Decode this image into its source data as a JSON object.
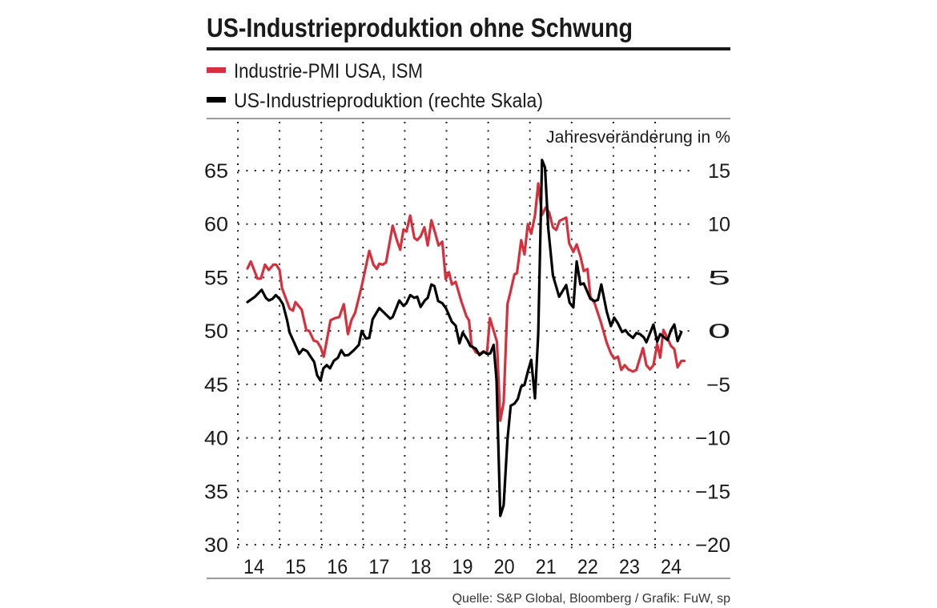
{
  "header": {
    "title": "US-Industrieproduktion ohne Schwung"
  },
  "legend": [
    {
      "label": "Industrie-PMI USA, ISM",
      "color": "#d7303d"
    },
    {
      "label": "US-Industrieproduktion (rechte Skala)",
      "color": "#000000"
    }
  ],
  "source": "Quelle: S&P Global, Bloomberg / Grafik: FuW, sp",
  "chart_data": {
    "type": "line",
    "title": "US-Industrieproduktion ohne Schwung",
    "right_axis_label": "Jahresveränderung in %",
    "x_ticks": [
      "14",
      "15",
      "16",
      "17",
      "18",
      "19",
      "20",
      "21",
      "22",
      "23",
      "24"
    ],
    "xlim": [
      2014,
      2024.85
    ],
    "left_axis": {
      "ylim": [
        30,
        65
      ],
      "ticks": [
        "65",
        "60",
        "55",
        "50",
        "45",
        "40",
        "35",
        "30"
      ]
    },
    "right_axis": {
      "ylim": [
        -20,
        15
      ],
      "ticks": [
        "15",
        "10",
        "5",
        "0",
        "−5",
        "−10",
        "−15",
        "−20"
      ]
    },
    "grid": "dotted",
    "legend_position": "top",
    "series": [
      {
        "name": "Industrie-PMI USA, ISM",
        "axis": "left",
        "color": "#d7303d",
        "points": [
          [
            2014.23,
            55.85
          ],
          [
            2014.31,
            56.5
          ],
          [
            2014.47,
            54.9
          ],
          [
            2014.55,
            54.9
          ],
          [
            2014.65,
            56.2
          ],
          [
            2014.74,
            55.7
          ],
          [
            2014.85,
            56.2
          ],
          [
            2014.92,
            56.2
          ],
          [
            2015.0,
            55.7
          ],
          [
            2015.06,
            54.0
          ],
          [
            2015.24,
            52.1
          ],
          [
            2015.32,
            51.9
          ],
          [
            2015.38,
            52.7
          ],
          [
            2015.53,
            52.0
          ],
          [
            2015.64,
            50.1
          ],
          [
            2015.71,
            50.0
          ],
          [
            2015.82,
            49.1
          ],
          [
            2015.9,
            49.0
          ],
          [
            2015.98,
            48.5
          ],
          [
            2016.06,
            47.6
          ],
          [
            2016.22,
            51.0
          ],
          [
            2016.33,
            51.2
          ],
          [
            2016.43,
            51.3
          ],
          [
            2016.54,
            52.5
          ],
          [
            2016.64,
            49.7
          ],
          [
            2016.72,
            51.0
          ],
          [
            2016.81,
            51.7
          ],
          [
            2016.97,
            54.2
          ],
          [
            2017.15,
            57.5
          ],
          [
            2017.25,
            56.2
          ],
          [
            2017.33,
            55.8
          ],
          [
            2017.39,
            56.3
          ],
          [
            2017.47,
            56.2
          ],
          [
            2017.55,
            56.4
          ],
          [
            2017.71,
            59.85
          ],
          [
            2017.81,
            58.5
          ],
          [
            2017.89,
            57.6
          ],
          [
            2017.97,
            59.5
          ],
          [
            2018.04,
            59.3
          ],
          [
            2018.13,
            60.8
          ],
          [
            2018.23,
            58.7
          ],
          [
            2018.3,
            58.5
          ],
          [
            2018.38,
            58.85
          ],
          [
            2018.47,
            59.7
          ],
          [
            2018.55,
            58.0
          ],
          [
            2018.64,
            60.35
          ],
          [
            2018.74,
            59.0
          ],
          [
            2018.81,
            58.0
          ],
          [
            2018.9,
            58.35
          ],
          [
            2018.98,
            54.85
          ],
          [
            2019.06,
            55.5
          ],
          [
            2019.13,
            54.35
          ],
          [
            2019.22,
            54.6
          ],
          [
            2019.35,
            52.85
          ],
          [
            2019.48,
            51.35
          ],
          [
            2019.54,
            51.0
          ],
          [
            2019.6,
            48.7
          ],
          [
            2019.7,
            48.0
          ],
          [
            2019.79,
            47.85
          ],
          [
            2019.89,
            48.1
          ],
          [
            2019.97,
            47.85
          ],
          [
            2020.04,
            51.2
          ],
          [
            2020.21,
            49.0
          ],
          [
            2020.29,
            41.6
          ],
          [
            2020.37,
            43.3
          ],
          [
            2020.46,
            52.5
          ],
          [
            2020.53,
            53.6
          ],
          [
            2020.63,
            55.3
          ],
          [
            2020.69,
            55.4
          ],
          [
            2020.79,
            58.5
          ],
          [
            2020.87,
            57.15
          ],
          [
            2020.95,
            60.0
          ],
          [
            2021.03,
            59.1
          ],
          [
            2021.12,
            60.8
          ],
          [
            2021.2,
            63.8
          ],
          [
            2021.29,
            60.85
          ],
          [
            2021.38,
            61.55
          ],
          [
            2021.46,
            61.1
          ],
          [
            2021.55,
            59.7
          ],
          [
            2021.63,
            59.45
          ],
          [
            2021.71,
            60.3
          ],
          [
            2021.87,
            60.6
          ],
          [
            2021.94,
            58.2
          ],
          [
            2022.04,
            57.4
          ],
          [
            2022.12,
            58.1
          ],
          [
            2022.21,
            57.0
          ],
          [
            2022.29,
            55.6
          ],
          [
            2022.38,
            55.8
          ],
          [
            2022.45,
            53.2
          ],
          [
            2022.55,
            52.6
          ],
          [
            2022.71,
            50.7
          ],
          [
            2022.84,
            48.9
          ],
          [
            2022.94,
            47.9
          ],
          [
            2023.02,
            47.4
          ],
          [
            2023.11,
            47.6
          ],
          [
            2023.19,
            46.35
          ],
          [
            2023.27,
            46.8
          ],
          [
            2023.36,
            46.4
          ],
          [
            2023.47,
            46.2
          ],
          [
            2023.55,
            46.35
          ],
          [
            2023.71,
            48.4
          ],
          [
            2023.79,
            46.8
          ],
          [
            2023.88,
            46.4
          ],
          [
            2023.96,
            46.8
          ],
          [
            2024.05,
            48.8
          ],
          [
            2024.12,
            47.5
          ],
          [
            2024.2,
            50.1
          ],
          [
            2024.3,
            49.3
          ],
          [
            2024.38,
            48.6
          ],
          [
            2024.46,
            48.3
          ],
          [
            2024.54,
            46.6
          ],
          [
            2024.63,
            47.2
          ],
          [
            2024.7,
            47.2
          ]
        ]
      },
      {
        "name": "US-Industrieproduktion (rechte Skala)",
        "axis": "right",
        "color": "#000000",
        "points": [
          [
            2014.23,
            2.7
          ],
          [
            2014.41,
            3.2
          ],
          [
            2014.57,
            3.85
          ],
          [
            2014.67,
            3.1
          ],
          [
            2014.74,
            2.85
          ],
          [
            2014.83,
            3.0
          ],
          [
            2014.91,
            3.35
          ],
          [
            2015.0,
            3.0
          ],
          [
            2015.08,
            2.5
          ],
          [
            2015.18,
            1.0
          ],
          [
            2015.24,
            -0.15
          ],
          [
            2015.34,
            -1.0
          ],
          [
            2015.47,
            -2.15
          ],
          [
            2015.56,
            -1.7
          ],
          [
            2015.66,
            -1.9
          ],
          [
            2015.76,
            -2.5
          ],
          [
            2015.83,
            -2.9
          ],
          [
            2015.9,
            -4.15
          ],
          [
            2015.98,
            -4.65
          ],
          [
            2016.05,
            -3.5
          ],
          [
            2016.13,
            -3.2
          ],
          [
            2016.21,
            -3.5
          ],
          [
            2016.3,
            -2.8
          ],
          [
            2016.4,
            -2.5
          ],
          [
            2016.48,
            -1.8
          ],
          [
            2016.56,
            -2.3
          ],
          [
            2016.65,
            -2.25
          ],
          [
            2016.78,
            -1.8
          ],
          [
            2016.9,
            -1.3
          ],
          [
            2016.97,
            0.0
          ],
          [
            2017.07,
            -0.7
          ],
          [
            2017.15,
            -0.65
          ],
          [
            2017.23,
            1.1
          ],
          [
            2017.39,
            2.15
          ],
          [
            2017.52,
            1.65
          ],
          [
            2017.65,
            1.15
          ],
          [
            2017.71,
            1.3
          ],
          [
            2017.87,
            2.85
          ],
          [
            2017.97,
            2.35
          ],
          [
            2018.04,
            2.6
          ],
          [
            2018.13,
            3.35
          ],
          [
            2018.23,
            3.1
          ],
          [
            2018.3,
            3.2
          ],
          [
            2018.38,
            2.25
          ],
          [
            2018.48,
            2.85
          ],
          [
            2018.55,
            3.1
          ],
          [
            2018.64,
            4.35
          ],
          [
            2018.71,
            4.2
          ],
          [
            2018.8,
            2.8
          ],
          [
            2018.9,
            2.6
          ],
          [
            2018.99,
            2.1
          ],
          [
            2019.13,
            0.85
          ],
          [
            2019.22,
            0.5
          ],
          [
            2019.31,
            -1.15
          ],
          [
            2019.39,
            -0.15
          ],
          [
            2019.51,
            -0.9
          ],
          [
            2019.57,
            -1.4
          ],
          [
            2019.7,
            -1.65
          ],
          [
            2019.79,
            -2.25
          ],
          [
            2019.89,
            -1.95
          ],
          [
            2019.98,
            -2.15
          ],
          [
            2020.05,
            -2.1
          ],
          [
            2020.13,
            -1.3
          ],
          [
            2020.2,
            -4.6
          ],
          [
            2020.29,
            -17.3
          ],
          [
            2020.37,
            -16.3
          ],
          [
            2020.46,
            -10.2
          ],
          [
            2020.54,
            -7.0
          ],
          [
            2020.63,
            -6.8
          ],
          [
            2020.71,
            -6.35
          ],
          [
            2020.79,
            -5.2
          ],
          [
            2020.87,
            -5.05
          ],
          [
            2020.95,
            -3.8
          ],
          [
            2021.03,
            -2.7
          ],
          [
            2021.12,
            -6.3
          ],
          [
            2021.2,
            -0.2
          ],
          [
            2021.29,
            16.0
          ],
          [
            2021.36,
            15.3
          ],
          [
            2021.44,
            9.6
          ],
          [
            2021.55,
            5.2
          ],
          [
            2021.7,
            3.2
          ],
          [
            2021.87,
            4.3
          ],
          [
            2021.95,
            2.65
          ],
          [
            2022.04,
            2.2
          ],
          [
            2022.12,
            6.5
          ],
          [
            2022.21,
            4.35
          ],
          [
            2022.29,
            4.45
          ],
          [
            2022.45,
            3.0
          ],
          [
            2022.55,
            2.8
          ],
          [
            2022.63,
            2.9
          ],
          [
            2022.71,
            4.35
          ],
          [
            2022.84,
            1.8
          ],
          [
            2022.94,
            0.45
          ],
          [
            2023.02,
            1.25
          ],
          [
            2023.11,
            0.7
          ],
          [
            2023.21,
            -0.1
          ],
          [
            2023.29,
            0.07
          ],
          [
            2023.36,
            -0.3
          ],
          [
            2023.47,
            -0.65
          ],
          [
            2023.55,
            -0.2
          ],
          [
            2023.64,
            -0.3
          ],
          [
            2023.73,
            -0.6
          ],
          [
            2023.79,
            -1.05
          ],
          [
            2023.88,
            -0.2
          ],
          [
            2023.96,
            0.6
          ],
          [
            2024.05,
            -1.0
          ],
          [
            2024.12,
            -0.3
          ],
          [
            2024.3,
            -0.85
          ],
          [
            2024.38,
            0.07
          ],
          [
            2024.46,
            0.6
          ],
          [
            2024.54,
            -0.95
          ],
          [
            2024.63,
            -0.1
          ]
        ]
      }
    ]
  }
}
